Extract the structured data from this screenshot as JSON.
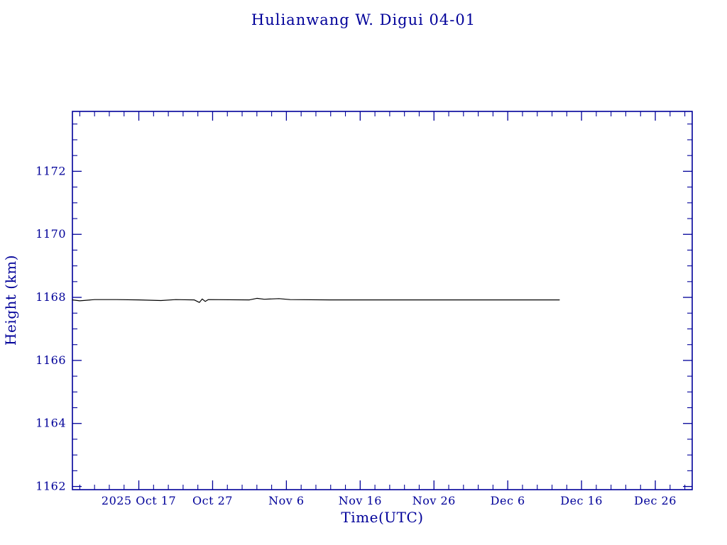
{
  "colors": {
    "axis": "#000099",
    "line": "#000000",
    "background": "#ffffff"
  },
  "chart_data": {
    "type": "line",
    "title": "Hulianwang W. Digui 04-01",
    "xlabel": "Time(UTC)",
    "ylabel": "Height (km)",
    "x_axis_unit": "days since 2025-10-08",
    "xlim": [
      0,
      84
    ],
    "ylim": [
      1161.9,
      1173.9
    ],
    "grid": false,
    "legend": "none",
    "y_major_ticks": [
      1162,
      1164,
      1166,
      1168,
      1170,
      1172
    ],
    "y_minor_step": 0.5,
    "x_minor_step": 2,
    "x_major_ticks": [
      {
        "pos": 9,
        "label": "2025 Oct 17"
      },
      {
        "pos": 19,
        "label": "Oct 27"
      },
      {
        "pos": 29,
        "label": "Nov 6"
      },
      {
        "pos": 39,
        "label": "Nov 16"
      },
      {
        "pos": 49,
        "label": "Nov 26"
      },
      {
        "pos": 59,
        "label": "Dec 6"
      },
      {
        "pos": 69,
        "label": "Dec 16"
      },
      {
        "pos": 79,
        "label": "Dec 26"
      }
    ],
    "series": [
      {
        "name": "height",
        "color": "#000000",
        "points": [
          [
            0,
            1167.92
          ],
          [
            1,
            1167.89
          ],
          [
            3,
            1167.93
          ],
          [
            6,
            1167.93
          ],
          [
            9,
            1167.92
          ],
          [
            12,
            1167.9
          ],
          [
            14,
            1167.93
          ],
          [
            16.5,
            1167.92
          ],
          [
            17.2,
            1167.84
          ],
          [
            17.6,
            1167.95
          ],
          [
            18,
            1167.87
          ],
          [
            18.4,
            1167.93
          ],
          [
            24,
            1167.92
          ],
          [
            25,
            1167.97
          ],
          [
            26,
            1167.94
          ],
          [
            28,
            1167.96
          ],
          [
            29.5,
            1167.93
          ],
          [
            35,
            1167.92
          ],
          [
            45,
            1167.92
          ],
          [
            55,
            1167.92
          ],
          [
            66,
            1167.92
          ]
        ]
      }
    ]
  }
}
